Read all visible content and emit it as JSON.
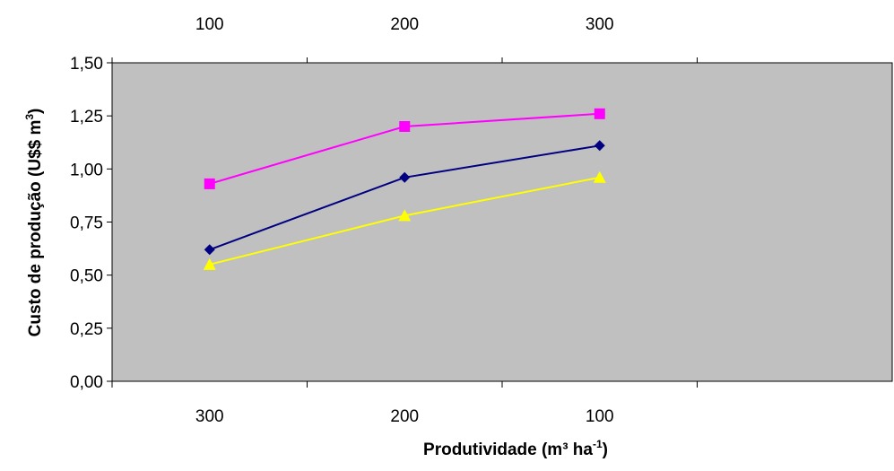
{
  "chart_data": {
    "type": "line",
    "title": "",
    "xlabel": {
      "main": "Produtividade (m³ ha",
      "sup": "-1",
      "close": ")"
    },
    "ylabel": {
      "main": "Custo de produção (U$$ m",
      "sup": "3",
      "close": ")"
    },
    "categories_bottom": [
      "300",
      "200",
      "100"
    ],
    "categories_top": [
      "100",
      "200",
      "300"
    ],
    "ylim": [
      0,
      1.5
    ],
    "yticks": [
      0,
      0.25,
      0.5,
      0.75,
      1.0,
      1.25,
      1.5
    ],
    "ytick_labels": [
      "0,00",
      "0,25",
      "0,50",
      "0,75",
      "1,00",
      "1,25",
      "1,50"
    ],
    "grid": false,
    "plot_background": "#C0C0C0",
    "legend": "none",
    "series": [
      {
        "color": "#FF00FF",
        "marker": "square",
        "values": [
          0.93,
          1.2,
          1.26
        ]
      },
      {
        "color": "#000080",
        "marker": "diamond",
        "values": [
          0.62,
          0.96,
          1.11
        ]
      },
      {
        "color": "#FFFF00",
        "marker": "triangle",
        "values": [
          0.55,
          0.78,
          0.96
        ]
      }
    ]
  }
}
